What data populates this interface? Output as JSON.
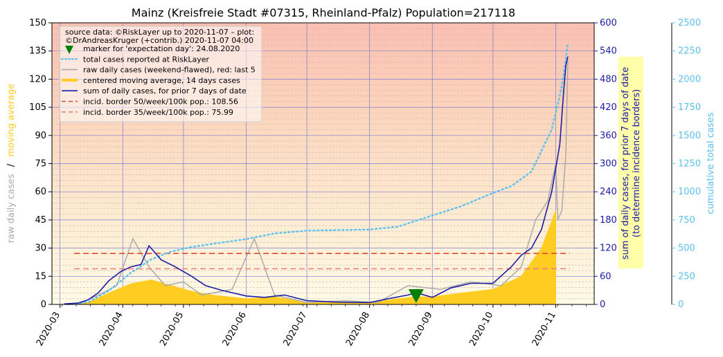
{
  "chart_data": {
    "type": "line",
    "title": "Mainz (Kreisfreie Stadt #07315, Rheinland-Pfalz) Population=217118",
    "source_note": "source data: ©RiskLayer up to 2020-11-07 – plot:",
    "source_note2": "©DrAndreasKruger (+contrib.) 2020-11-07 04:00",
    "ylabel_left_part1": "raw daily cases",
    "ylabel_left_sep": "/",
    "ylabel_left_part2": "moving average",
    "ylabel_right1_line1": "sum of daily cases, for prior 7 days of date",
    "ylabel_right1_line2": "(to determine incidence borders)",
    "ylabel_right2": "cumulative total cases",
    "x_ticks": [
      "2020-03",
      "2020-04",
      "2020-05",
      "2020-06",
      "2020-07",
      "2020-08",
      "2020-09",
      "2020-10",
      "2020-11"
    ],
    "y_left_ticks": [
      "0",
      "15",
      "30",
      "45",
      "60",
      "75",
      "90",
      "105",
      "120",
      "135",
      "150"
    ],
    "y_right1_ticks": [
      "0",
      "60",
      "120",
      "180",
      "240",
      "300",
      "360",
      "420",
      "480",
      "540",
      "600"
    ],
    "y_right2_ticks": [
      "0",
      "250",
      "500",
      "750",
      "1000",
      "1250",
      "1500",
      "1750",
      "2000",
      "2250",
      "2500"
    ],
    "ylim_left": [
      0,
      150
    ],
    "ylim_right1": [
      0,
      600
    ],
    "ylim_right2": [
      0,
      2500
    ],
    "xlim": [
      "2020-02-26",
      "2020-11-20"
    ],
    "legend": [
      {
        "label": "marker for 'expectation day': 24.08.2020",
        "style": "marker",
        "color": "#008000"
      },
      {
        "label": "total cases reported at RiskLayer",
        "style": "dotted",
        "color": "#5bc0f0"
      },
      {
        "label": "raw daily cases (weekend-flawed), red: last 5",
        "style": "solid",
        "color": "#aaaaaa"
      },
      {
        "label": "centered moving average, 14 days cases",
        "style": "thick",
        "color": "#ffcc22"
      },
      {
        "label": "sum of daily cases, for prior 7 days of date",
        "style": "solid",
        "color": "#1a1aa6"
      },
      {
        "label": "incid. border 50/week/100k pop.: 108.56",
        "style": "dashed",
        "color": "#dd4433"
      },
      {
        "label": "incid. border 35/week/100k pop.: 75.99",
        "style": "dashed",
        "color": "#f08080"
      }
    ],
    "incidence_border_50": 108.56,
    "incidence_border_35": 75.99,
    "expectation_day": "2020-08-24",
    "series": [
      {
        "name": "sum of daily cases, for prior 7 days of date",
        "axis": "right1",
        "x": [
          "2020-03-03",
          "2020-03-10",
          "2020-03-15",
          "2020-03-20",
          "2020-03-25",
          "2020-03-31",
          "2020-04-05",
          "2020-04-10",
          "2020-04-14",
          "2020-04-20",
          "2020-04-27",
          "2020-05-05",
          "2020-05-12",
          "2020-05-20",
          "2020-06-01",
          "2020-06-10",
          "2020-06-20",
          "2020-07-01",
          "2020-07-15",
          "2020-08-01",
          "2020-08-10",
          "2020-08-20",
          "2020-08-24",
          "2020-09-01",
          "2020-09-10",
          "2020-09-20",
          "2020-10-01",
          "2020-10-10",
          "2020-10-15",
          "2020-10-20",
          "2020-10-25",
          "2020-10-30",
          "2020-11-03",
          "2020-11-05",
          "2020-11-06",
          "2020-11-07"
        ],
        "values": [
          1,
          3,
          10,
          25,
          50,
          70,
          80,
          85,
          125,
          95,
          80,
          60,
          40,
          30,
          18,
          15,
          20,
          8,
          5,
          4,
          12,
          20,
          25,
          15,
          35,
          45,
          45,
          80,
          105,
          120,
          160,
          240,
          340,
          460,
          510,
          528
        ]
      },
      {
        "name": "centered moving average, 14 days cases",
        "axis": "left",
        "x": [
          "2020-03-08",
          "2020-03-15",
          "2020-03-25",
          "2020-04-05",
          "2020-04-15",
          "2020-04-25",
          "2020-05-05",
          "2020-05-15",
          "2020-06-01",
          "2020-06-15",
          "2020-07-01",
          "2020-07-15",
          "2020-08-01",
          "2020-08-15",
          "2020-08-24",
          "2020-09-01",
          "2020-09-15",
          "2020-10-01",
          "2020-10-15",
          "2020-10-25",
          "2020-11-01"
        ],
        "values": [
          0.2,
          1,
          6,
          11,
          13,
          10,
          7,
          5,
          3,
          4,
          1,
          1,
          1,
          3,
          4,
          4,
          6,
          8,
          15,
          30,
          50
        ]
      },
      {
        "name": "total cases reported at RiskLayer",
        "axis": "right2",
        "x": [
          "2020-03-05",
          "2020-03-15",
          "2020-03-25",
          "2020-04-05",
          "2020-04-15",
          "2020-04-25",
          "2020-05-05",
          "2020-05-20",
          "2020-06-01",
          "2020-06-15",
          "2020-07-01",
          "2020-07-15",
          "2020-08-01",
          "2020-08-15",
          "2020-09-01",
          "2020-09-15",
          "2020-10-01",
          "2020-10-10",
          "2020-10-20",
          "2020-10-30",
          "2020-11-03",
          "2020-11-05",
          "2020-11-07"
        ],
        "values": [
          2,
          20,
          120,
          280,
          400,
          470,
          510,
          550,
          580,
          630,
          655,
          660,
          665,
          690,
          790,
          870,
          990,
          1050,
          1180,
          1550,
          1850,
          2050,
          2320
        ]
      },
      {
        "name": "raw daily cases (weekend-flawed), red: last 5",
        "axis": "left",
        "x": [
          "2020-03-10",
          "2020-03-20",
          "2020-03-29",
          "2020-04-06",
          "2020-04-14",
          "2020-04-22",
          "2020-05-01",
          "2020-05-10",
          "2020-05-25",
          "2020-06-05",
          "2020-06-15",
          "2020-07-01",
          "2020-07-20",
          "2020-08-05",
          "2020-08-20",
          "2020-09-05",
          "2020-09-20",
          "2020-10-05",
          "2020-10-15",
          "2020-10-22",
          "2020-10-28",
          "2020-11-01",
          "2020-11-02",
          "2020-11-04",
          "2020-11-06",
          "2020-11-07"
        ],
        "values": [
          0,
          5,
          10,
          35,
          20,
          10,
          12,
          5,
          8,
          35,
          5,
          1,
          2,
          1,
          10,
          8,
          12,
          10,
          20,
          45,
          55,
          75,
          45,
          50,
          80,
          130
        ]
      }
    ]
  }
}
